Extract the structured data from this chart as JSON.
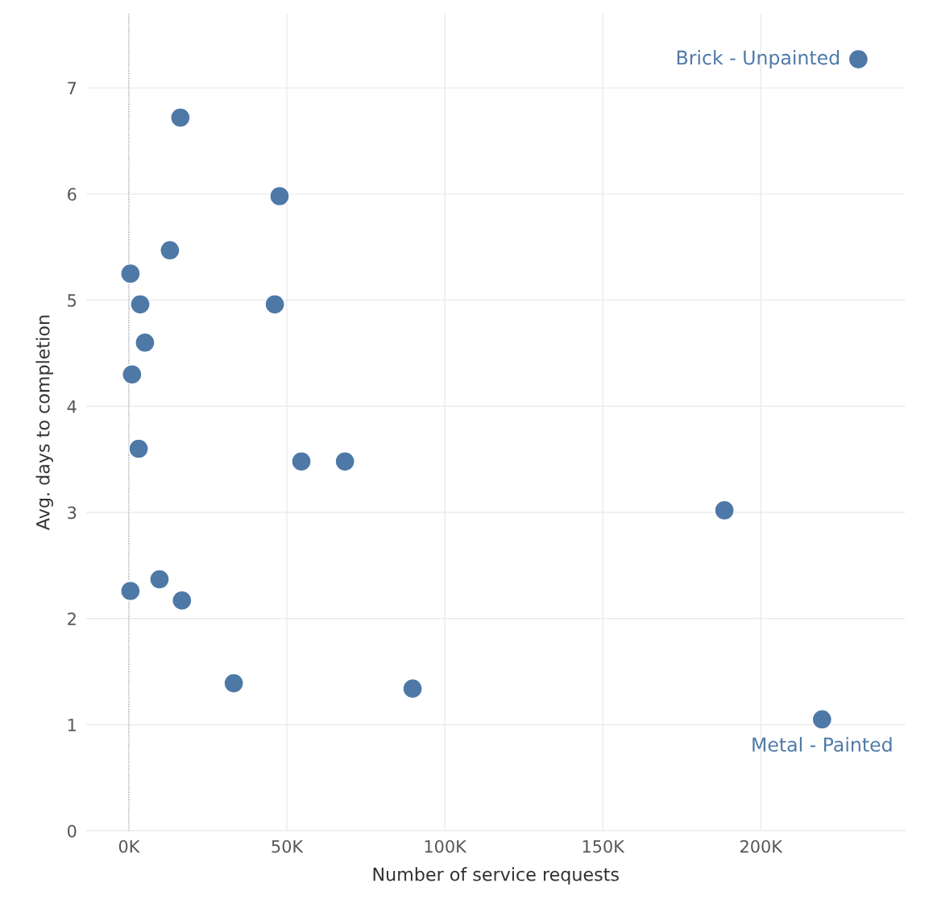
{
  "chart_data": {
    "type": "scatter",
    "xlabel": "Number of service requests",
    "ylabel": "Avg. days to completion",
    "x": [
      16.3,
      47.7,
      13.0,
      0.5,
      3.6,
      46.2,
      5.1,
      1.0,
      3.1,
      54.6,
      68.4,
      188.5,
      9.7,
      0.5,
      16.8,
      33.2,
      89.8,
      219.4,
      230.9
    ],
    "series": [
      {
        "color": "#4e79a7",
        "values": [
          6.72,
          5.98,
          5.47,
          5.25,
          4.96,
          4.96,
          4.6,
          4.3,
          3.6,
          3.48,
          3.48,
          3.02,
          2.37,
          2.26,
          2.17,
          1.39,
          1.34,
          1.05,
          7.27
        ]
      }
    ],
    "xlim": [
      -13.5,
      245.7
    ],
    "ylim": [
      0,
      7.7
    ],
    "xticks": [
      {
        "value": 0,
        "label": "0K"
      },
      {
        "value": 50,
        "label": "50K"
      },
      {
        "value": 100,
        "label": "100K"
      },
      {
        "value": 150,
        "label": "150K"
      },
      {
        "value": 200,
        "label": "200K"
      }
    ],
    "yticks": [
      0,
      1,
      2,
      3,
      4,
      5,
      6,
      7
    ],
    "ref_lines": [
      {
        "axis": "x",
        "value": 0,
        "color": "#999999",
        "line_style": "dotted"
      }
    ],
    "annotations": [
      {
        "text": "Brick - Unpainted",
        "x": 230.9,
        "y": 7.27
      },
      {
        "text": "Metal - Painted",
        "x": 219.4,
        "y": 1.05
      }
    ],
    "grid": true,
    "marker": "circle"
  }
}
